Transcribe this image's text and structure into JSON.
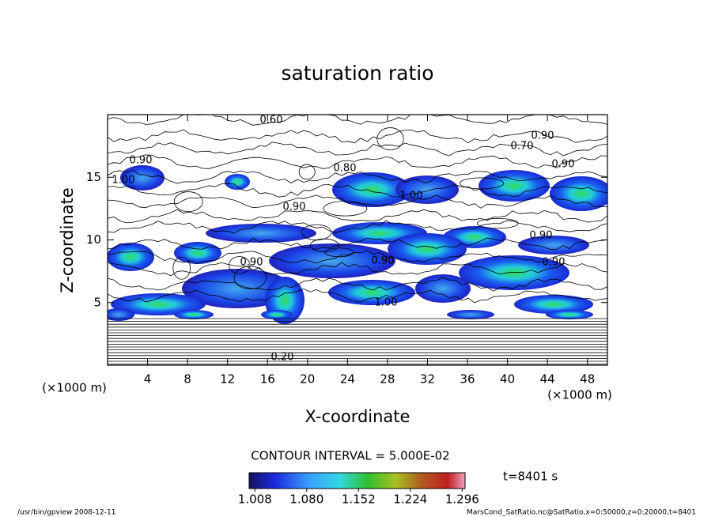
{
  "chart_data": {
    "type": "contour",
    "title": "saturation ratio",
    "xlabel": "X-coordinate",
    "ylabel": "Z-coordinate",
    "x_unit_label": "(×1000 m)",
    "y_unit_label": "(×1000 m)",
    "xlim": [
      0,
      50
    ],
    "ylim": [
      0,
      20
    ],
    "xticks": [
      4,
      8,
      12,
      16,
      20,
      24,
      28,
      32,
      36,
      40,
      44,
      48
    ],
    "yticks": [
      5,
      10,
      15
    ],
    "contour_labels": [
      "0.60",
      "0.90",
      "1.00",
      "0.80",
      "0.70",
      "0.90",
      "0.90",
      "0.90",
      "1.00",
      "0.90",
      "0.90",
      "0.90",
      "0.90",
      "1.00",
      "0.20"
    ],
    "contour_interval_label": "CONTOUR INTERVAL = 5.000E-02",
    "colorbar": {
      "lim": [
        1.0,
        1.3
      ],
      "ticks": [
        1.008,
        {
          "value": 1.08,
          "label": "1.080"
        },
        1.152,
        1.224,
        1.296
      ]
    },
    "time_label": "t=8401 s",
    "footer_left": "/usr/bin/gpview   2008-12-11",
    "footer_right": "MarsCond_SatRatio.nc@SatRatio,x=0:50000,z=0:20000,t=8401"
  }
}
